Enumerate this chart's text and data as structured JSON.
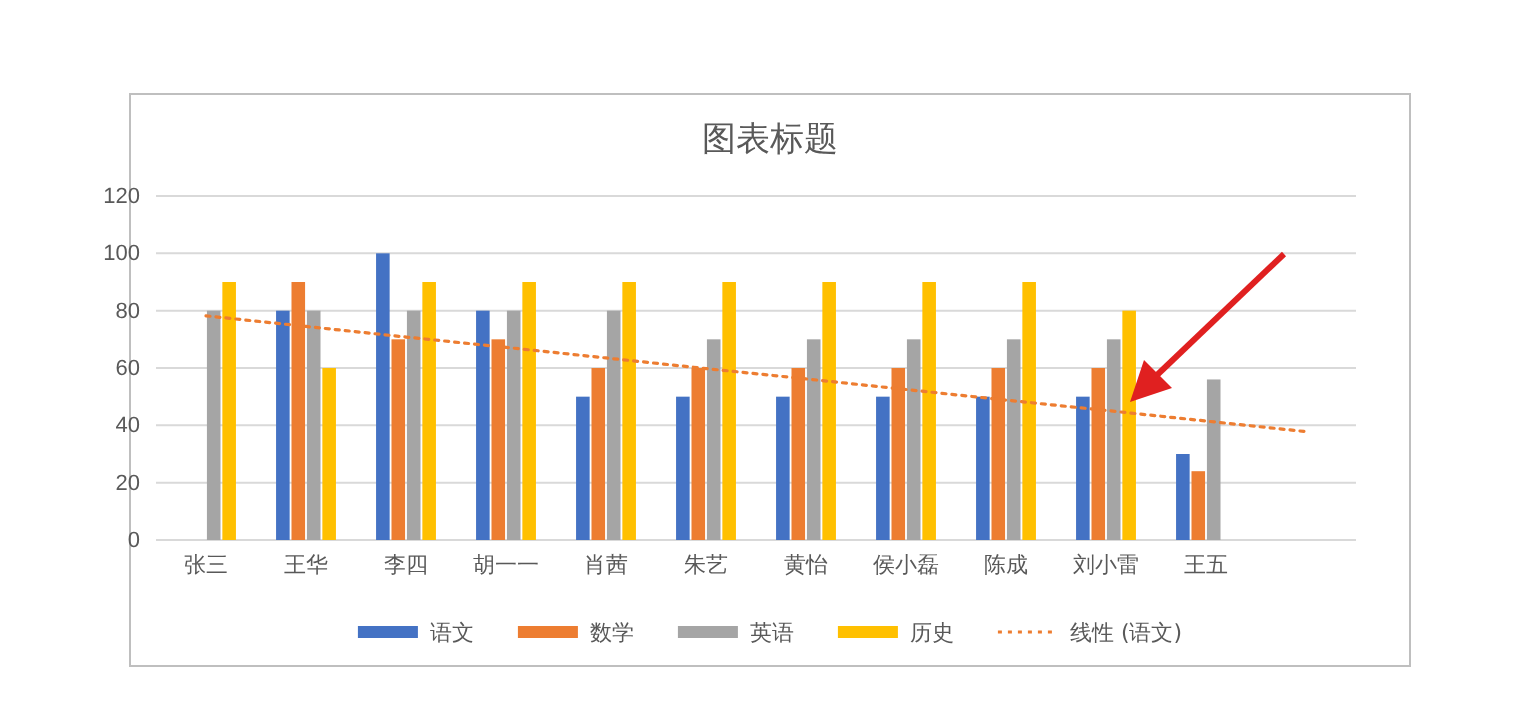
{
  "chart_data": {
    "type": "bar",
    "title": "图表标题",
    "categories": [
      "张三",
      "王华",
      "李四",
      "胡一一",
      "肖茜",
      "朱艺",
      "黄怡",
      "侯小磊",
      "陈成",
      "刘小雷",
      "王五",
      null
    ],
    "series": [
      {
        "name": "语文",
        "color": "#4472c4",
        "values": [
          null,
          80,
          100,
          80,
          50,
          50,
          50,
          50,
          50,
          50,
          30,
          null
        ]
      },
      {
        "name": "数学",
        "color": "#ed7d31",
        "values": [
          null,
          90,
          70,
          70,
          60,
          60,
          60,
          60,
          60,
          60,
          24,
          null
        ]
      },
      {
        "name": "英语",
        "color": "#a5a5a5",
        "values": [
          80,
          80,
          80,
          80,
          80,
          70,
          70,
          70,
          70,
          70,
          56,
          null
        ]
      },
      {
        "name": "历史",
        "color": "#ffc000",
        "values": [
          90,
          60,
          90,
          90,
          90,
          90,
          90,
          90,
          90,
          80,
          null,
          null
        ]
      },
      {
        "name": "线性 (语文)",
        "type": "line",
        "color": "#ed7d31",
        "line_style": "dotted",
        "values": [
          78.2,
          74.5,
          70.8,
          67.2,
          63.5,
          59.8,
          56.2,
          52.5,
          48.8,
          45.2,
          41.5,
          37.8
        ]
      }
    ],
    "ylim": [
      0,
      120
    ],
    "yticks": [
      0,
      20,
      40,
      60,
      80,
      100,
      120
    ],
    "grid": "y",
    "legend": "bottom"
  }
}
